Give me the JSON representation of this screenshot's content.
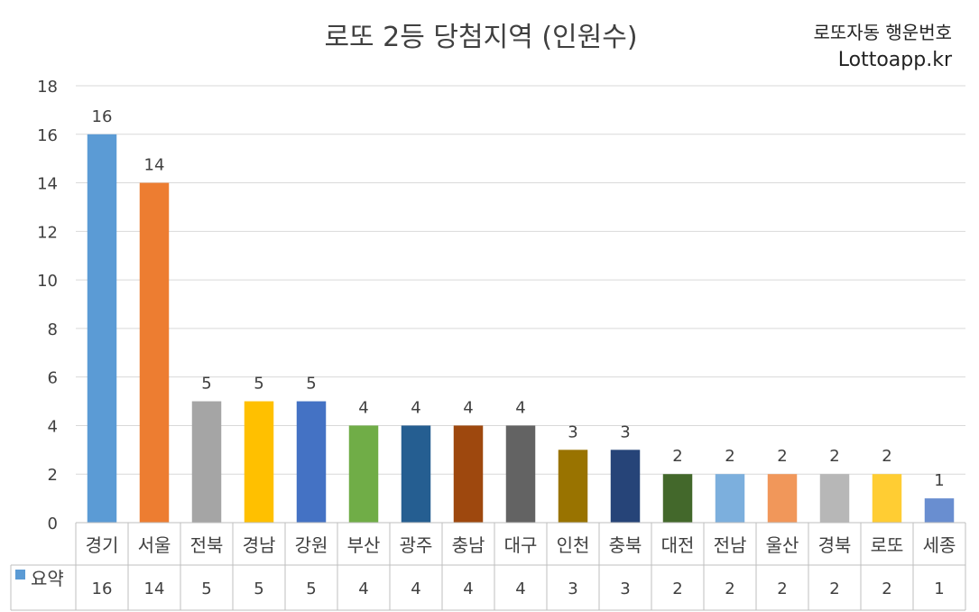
{
  "header": {
    "title": "로또 2등 당첨지역 (인원수)",
    "brand_line1": "로또자동 행운번호",
    "brand_line2": "Lottoapp.kr"
  },
  "chart_data": {
    "type": "bar",
    "title": "로또 2등 당첨지역 (인원수)",
    "xlabel": "",
    "ylabel": "",
    "ylim": [
      0,
      18
    ],
    "yticks": [
      0,
      2,
      4,
      6,
      8,
      10,
      12,
      14,
      16,
      18
    ],
    "grid": true,
    "categories": [
      "경기",
      "서울",
      "전북",
      "경남",
      "강원",
      "부산",
      "광주",
      "충남",
      "대구",
      "인천",
      "충북",
      "대전",
      "전남",
      "울산",
      "경북",
      "로또",
      "세종"
    ],
    "series": [
      {
        "name": "요약",
        "values": [
          16,
          14,
          5,
          5,
          5,
          4,
          4,
          4,
          4,
          3,
          3,
          2,
          2,
          2,
          2,
          2,
          1
        ]
      }
    ],
    "bar_colors": [
      "#5B9BD5",
      "#ED7D31",
      "#A5A5A5",
      "#FFC000",
      "#4472C4",
      "#70AD47",
      "#255E91",
      "#9E480E",
      "#636363",
      "#997300",
      "#264478",
      "#43682B",
      "#7CAFDD",
      "#F1975A",
      "#B7B7B7",
      "#FFCD33",
      "#698ED0"
    ],
    "legend_color": "#5B9BD5",
    "data_table": true
  }
}
